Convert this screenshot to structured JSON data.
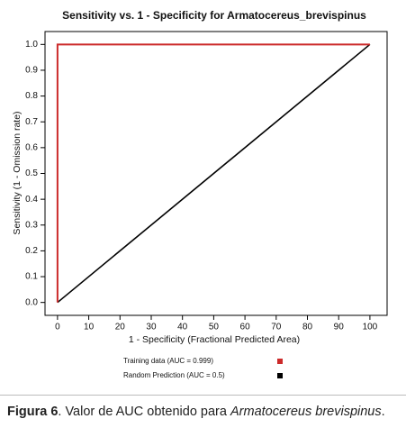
{
  "chart_data": {
    "type": "line",
    "title": "Sensitivity vs. 1 - Specificity for Armatocereus_brevispinus",
    "x_label": "1 - Specificity (Fractional Predicted Area)",
    "y_label": "Sensitivity (1 - Omission rate)",
    "xlim": [
      -4,
      105.5
    ],
    "ylim": [
      -0.05,
      1.05
    ],
    "xticks": [
      0,
      10,
      20,
      30,
      40,
      50,
      60,
      70,
      80,
      90,
      100
    ],
    "yticks": [
      {
        "value": 0,
        "label": "0.0"
      },
      0.1,
      0.2,
      0.3,
      0.4,
      0.5,
      0.6,
      0.7,
      0.8,
      0.9,
      {
        "value": 1,
        "label": "1.0"
      }
    ],
    "series": [
      {
        "name": "Training data (AUC = 0.999)",
        "color": "#cc2a2a",
        "x": [
          0,
          0,
          100
        ],
        "values": [
          0,
          1,
          1
        ]
      },
      {
        "name": "Random Prediction (AUC = 0.5)",
        "color": "#000000",
        "x": [
          0,
          100
        ],
        "values": [
          0,
          1
        ]
      }
    ]
  },
  "caption": {
    "label": "Figura 6",
    "text": ". Valor de AUC obtenido para ",
    "species": "Armatocereus brevispinus",
    "end": "."
  }
}
